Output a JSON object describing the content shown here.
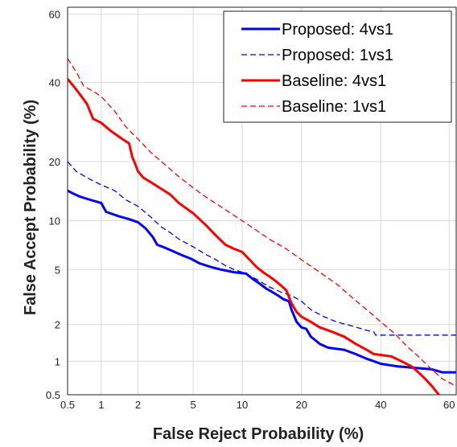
{
  "chart_data": {
    "type": "line",
    "xlabel": "False Reject Probability (%)",
    "ylabel": "False Accept Probability (%)",
    "x_scale": "probit",
    "y_scale": "probit",
    "xlim": [
      0.5,
      62
    ],
    "ylim": [
      0.5,
      62
    ],
    "x_ticks": [
      {
        "value": 0.5,
        "label": "0.5"
      },
      {
        "value": 1,
        "label": "1"
      },
      {
        "value": 2,
        "label": "2"
      },
      {
        "value": 5,
        "label": "5"
      },
      {
        "value": 10,
        "label": "10"
      },
      {
        "value": 20,
        "label": "20"
      },
      {
        "value": 40,
        "label": "40"
      },
      {
        "value": 60,
        "label": "60"
      }
    ],
    "y_ticks": [
      {
        "value": 0.5,
        "label": "0.5"
      },
      {
        "value": 1,
        "label": "1"
      },
      {
        "value": 2,
        "label": "2"
      },
      {
        "value": 5,
        "label": "5"
      },
      {
        "value": 10,
        "label": "10"
      },
      {
        "value": 20,
        "label": "20"
      },
      {
        "value": 40,
        "label": "40"
      },
      {
        "value": 60,
        "label": "60"
      }
    ],
    "grid": true,
    "legend_position": "top-right",
    "series": [
      {
        "name": "Proposed: 4vs1",
        "color": "#0000ff",
        "style": "solid",
        "points": [
          [
            0.5,
            14.5
          ],
          [
            0.55,
            14.1
          ],
          [
            0.65,
            13.5
          ],
          [
            0.8,
            13.0
          ],
          [
            1.0,
            12.5
          ],
          [
            1.1,
            11.2
          ],
          [
            1.4,
            10.6
          ],
          [
            1.7,
            10.2
          ],
          [
            2.0,
            9.8
          ],
          [
            2.3,
            9.0
          ],
          [
            2.6,
            8.0
          ],
          [
            2.8,
            7.2
          ],
          [
            3.2,
            6.9
          ],
          [
            3.6,
            6.6
          ],
          [
            4.2,
            6.2
          ],
          [
            4.8,
            5.9
          ],
          [
            5.5,
            5.5
          ],
          [
            6.5,
            5.2
          ],
          [
            7.5,
            5.0
          ],
          [
            9.0,
            4.8
          ],
          [
            10.5,
            4.7
          ],
          [
            11.5,
            4.3
          ],
          [
            12.5,
            4.0
          ],
          [
            13.5,
            3.7
          ],
          [
            14.5,
            3.5
          ],
          [
            15.5,
            3.3
          ],
          [
            16.5,
            3.1
          ],
          [
            17.5,
            3.0
          ],
          [
            18.0,
            2.6
          ],
          [
            19.0,
            2.1
          ],
          [
            20.0,
            1.9
          ],
          [
            21.0,
            1.85
          ],
          [
            22.0,
            1.6
          ],
          [
            23.0,
            1.5
          ],
          [
            24.0,
            1.4
          ],
          [
            26.0,
            1.3
          ],
          [
            30.0,
            1.25
          ],
          [
            33.0,
            1.15
          ],
          [
            36.0,
            1.05
          ],
          [
            38.0,
            1.0
          ],
          [
            40.0,
            0.95
          ],
          [
            45.0,
            0.9
          ],
          [
            55.0,
            0.85
          ],
          [
            58.0,
            0.8
          ],
          [
            62.0,
            0.8
          ]
        ]
      },
      {
        "name": "Proposed: 1vs1",
        "color": "#0000ff",
        "style": "dashed",
        "points": [
          [
            0.5,
            20.0
          ],
          [
            0.6,
            18.0
          ],
          [
            0.8,
            16.5
          ],
          [
            1.0,
            15.5
          ],
          [
            1.3,
            14.5
          ],
          [
            1.6,
            13.0
          ],
          [
            2.0,
            12.0
          ],
          [
            2.5,
            10.5
          ],
          [
            3.0,
            9.2
          ],
          [
            3.5,
            8.5
          ],
          [
            4.0,
            7.8
          ],
          [
            5.0,
            7.0
          ],
          [
            6.0,
            6.3
          ],
          [
            7.0,
            5.8
          ],
          [
            8.0,
            5.3
          ],
          [
            9.0,
            5.0
          ],
          [
            10.0,
            4.8
          ],
          [
            12.0,
            4.3
          ],
          [
            14.0,
            3.8
          ],
          [
            16.0,
            3.5
          ],
          [
            18.0,
            3.3
          ],
          [
            20.0,
            3.0
          ],
          [
            22.0,
            2.6
          ],
          [
            25.0,
            2.3
          ],
          [
            28.0,
            2.1
          ],
          [
            32.0,
            1.95
          ],
          [
            36.0,
            1.8
          ],
          [
            38.0,
            1.75
          ],
          [
            38.5,
            1.65
          ],
          [
            62.0,
            1.65
          ]
        ]
      },
      {
        "name": "Baseline: 4vs1",
        "color": "#ff0000",
        "style": "solid",
        "points": [
          [
            0.5,
            41.0
          ],
          [
            0.6,
            38.0
          ],
          [
            0.75,
            34.0
          ],
          [
            0.85,
            30.0
          ],
          [
            1.0,
            29.0
          ],
          [
            1.2,
            27.0
          ],
          [
            1.5,
            25.0
          ],
          [
            1.7,
            24.0
          ],
          [
            1.8,
            21.0
          ],
          [
            1.9,
            19.5
          ],
          [
            2.0,
            18.0
          ],
          [
            2.2,
            16.8
          ],
          [
            2.5,
            16.0
          ],
          [
            3.0,
            14.8
          ],
          [
            3.5,
            13.8
          ],
          [
            4.0,
            12.5
          ],
          [
            5.0,
            11.0
          ],
          [
            6.0,
            9.5
          ],
          [
            7.0,
            8.2
          ],
          [
            8.0,
            7.2
          ],
          [
            9.0,
            6.8
          ],
          [
            10.0,
            6.5
          ],
          [
            11.0,
            5.8
          ],
          [
            12.0,
            5.2
          ],
          [
            13.0,
            4.8
          ],
          [
            14.0,
            4.5
          ],
          [
            15.0,
            4.2
          ],
          [
            16.0,
            3.9
          ],
          [
            17.0,
            3.6
          ],
          [
            18.0,
            2.9
          ],
          [
            19.0,
            2.5
          ],
          [
            20.0,
            2.3
          ],
          [
            22.0,
            2.1
          ],
          [
            24.0,
            1.9
          ],
          [
            27.0,
            1.75
          ],
          [
            30.0,
            1.6
          ],
          [
            33.0,
            1.4
          ],
          [
            36.0,
            1.25
          ],
          [
            38.0,
            1.15
          ],
          [
            43.0,
            1.1
          ],
          [
            46.0,
            1.0
          ],
          [
            49.0,
            0.9
          ],
          [
            51.0,
            0.8
          ],
          [
            53.0,
            0.7
          ],
          [
            55.0,
            0.6
          ],
          [
            57.0,
            0.5
          ]
        ]
      },
      {
        "name": "Baseline: 1vs1",
        "color": "#ff0000",
        "style": "dashed",
        "points": [
          [
            0.5,
            47.0
          ],
          [
            0.6,
            43.0
          ],
          [
            0.7,
            39.0
          ],
          [
            0.9,
            37.0
          ],
          [
            1.0,
            36.0
          ],
          [
            1.3,
            32.0
          ],
          [
            1.6,
            28.0
          ],
          [
            2.0,
            25.0
          ],
          [
            2.5,
            22.0
          ],
          [
            3.0,
            20.0
          ],
          [
            4.0,
            17.0
          ],
          [
            5.0,
            15.0
          ],
          [
            6.0,
            13.5
          ],
          [
            8.0,
            11.5
          ],
          [
            10.0,
            10.0
          ],
          [
            12.0,
            8.8
          ],
          [
            14.0,
            7.8
          ],
          [
            17.0,
            6.8
          ],
          [
            20.0,
            5.8
          ],
          [
            24.0,
            4.8
          ],
          [
            28.0,
            4.0
          ],
          [
            32.0,
            3.2
          ],
          [
            36.0,
            2.6
          ],
          [
            40.0,
            2.1
          ],
          [
            44.0,
            1.7
          ],
          [
            48.0,
            1.3
          ],
          [
            51.0,
            1.1
          ],
          [
            54.0,
            0.9
          ],
          [
            58.0,
            0.7
          ],
          [
            62.0,
            0.6
          ]
        ]
      }
    ]
  }
}
